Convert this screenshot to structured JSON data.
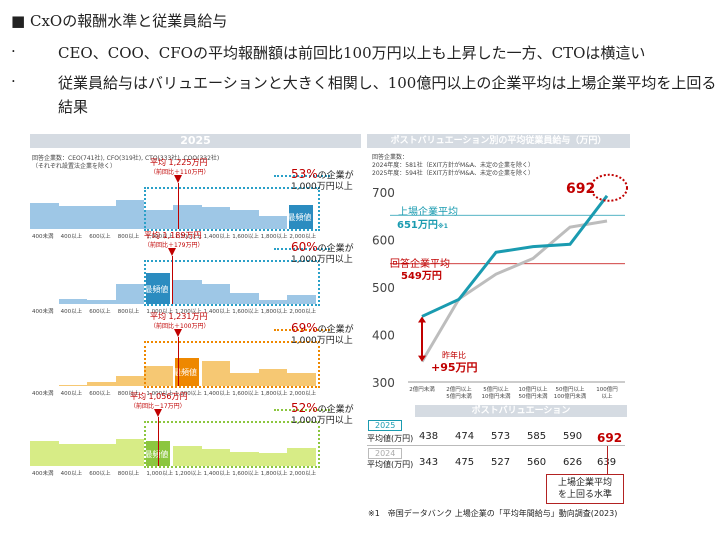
{
  "heading": "CxOの報酬水準と従業員給与",
  "bullets": [
    "CEO、COO、CFOの平均報酬額は前回比100万円以上も上昇した一方、CTOは横這い",
    "従業員給与はバリュエーションと大きく相関し、100億円以上の企業平均は上場企業平均を上回る",
    "結果"
  ],
  "left_panel": {
    "title": "2025",
    "respondents": "回答企業数：CEO(741社), CFO(319社), CTO(333社), COO(332社)",
    "respondents2": "（それぞれ設置法企業を除く）",
    "x_labels": [
      "400未満",
      "400以上",
      "600以上",
      "800以上",
      "1,000以上",
      "1,200以上",
      "1,400以上",
      "1,600以上",
      "1,800以上",
      "2,000以上"
    ],
    "mode_label": "最頻値",
    "histograms": [
      {
        "role": "CEO",
        "color": "#9ec7e6",
        "dot": "#2aa0c8",
        "avg": "平均 1,225万円",
        "avg_diff": "（前回比＋110万円）",
        "pct": "53%",
        "pct_text1": "の企業が",
        "pct_text2": "1,000万円以上",
        "values": [
          0.62,
          0.55,
          0.55,
          0.68,
          0.45,
          0.58,
          0.52,
          0.45,
          0.32,
          0.58
        ],
        "mode_index": 9
      },
      {
        "role": "CFO",
        "color": "#9ec7e6",
        "dot": "#2aa0c8",
        "avg": "平均 1,189万円",
        "avg_diff": "（前回比＋179万円）",
        "pct": "60%",
        "pct_text1": "の企業が",
        "pct_text2": "1,000万円以上",
        "values": [
          0.0,
          0.12,
          0.1,
          0.45,
          0.7,
          0.55,
          0.45,
          0.25,
          0.1,
          0.2
        ],
        "mode_index": 4
      },
      {
        "role": "CTO",
        "color": "#f6c873",
        "dot": "#ee8800",
        "avg": "平均 1,231万円",
        "avg_diff": "（前回比＋100万円）",
        "pct": "69%",
        "pct_text1": "の企業が",
        "pct_text2": "1,000万円以上",
        "values": [
          0.0,
          0.02,
          0.08,
          0.22,
          0.45,
          0.62,
          0.55,
          0.28,
          0.38,
          0.3
        ],
        "mode_index": 5
      },
      {
        "role": "COO",
        "color": "#d7ec86",
        "dot": "#8cc63f",
        "avg": "平均 1,056万円",
        "avg_diff": "（前回比－17万円）",
        "pct": "52%",
        "pct_text1": "の企業が",
        "pct_text2": "1,000万円以上",
        "values": [
          0.55,
          0.5,
          0.48,
          0.6,
          0.55,
          0.45,
          0.38,
          0.32,
          0.3,
          0.4
        ],
        "mode_index": 4
      }
    ]
  },
  "right_panel": {
    "title": "ポストバリュエーション別の平均従業員給与（万円）",
    "note1": "回答企業数：",
    "note2": "2024年度：581社（EXIT方針がM&A、未定の企業を除く）",
    "note3": "2025年度：594社（EXIT方針がM&A、未定の企業を除く）",
    "listed_label": "上場企業平均",
    "listed_value": "651万円",
    "listed_note": "※1",
    "resp_label": "回答企業平均",
    "resp_value": "549万円",
    "yoy1": "昨年比",
    "yoy2": "+95万円",
    "callout_value": "692",
    "bottom_title": "ポストバリュエーション",
    "row_year_2025": "2025",
    "row_year_2024": "2024",
    "row_label": "平均値(万円)",
    "values_2025_text": [
      "438",
      "474",
      "573",
      "585",
      "590",
      "692"
    ],
    "values_2024_text": [
      "343",
      "475",
      "527",
      "560",
      "626",
      "639"
    ],
    "callout_text1": "上場企業平均",
    "callout_text2": "を上回る水準",
    "footnote": "※1　帝国データバンク 上場企業の「平均年間給与」動向調査(2023)"
  },
  "chart_data": {
    "type": "line",
    "title": "ポストバリュエーション別の平均従業員給与（万円）",
    "categories": [
      "2億円未満",
      "2億円以上5億円未満",
      "5億円以上10億円未満",
      "10億円以上50億円未満",
      "50億円以上100億円未満",
      "100億円以上"
    ],
    "series": [
      {
        "name": "2025",
        "color": "#1a9bb0",
        "values": [
          438,
          474,
          573,
          585,
          590,
          692
        ]
      },
      {
        "name": "2024",
        "color": "#bdbdbd",
        "values": [
          343,
          475,
          527,
          560,
          626,
          639
        ]
      }
    ],
    "reference_lines": [
      {
        "name": "上場企業平均",
        "value": 651,
        "color": "#1a9bb0"
      },
      {
        "name": "回答企業平均",
        "value": 549,
        "color": "#c00000"
      }
    ],
    "ylim": [
      300,
      700
    ],
    "yticks": [
      300,
      400,
      500,
      600,
      700
    ],
    "xlabel": "ポストバリュエーション",
    "ylabel": ""
  }
}
